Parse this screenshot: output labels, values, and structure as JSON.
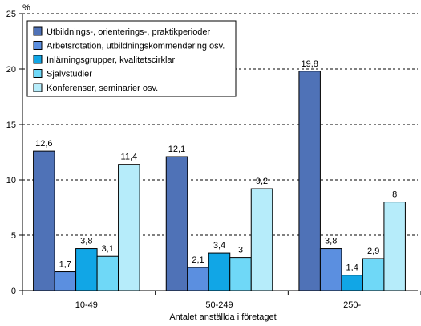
{
  "chart_data": {
    "type": "bar",
    "unit_label": "%",
    "xlabel": "Antalet anställda i företaget",
    "ylabel": "",
    "ylim": [
      0,
      25
    ],
    "yticks": [
      0,
      5,
      10,
      15,
      20,
      25
    ],
    "grid": "horizontal-dashed",
    "legend_position": "top-left",
    "categories": [
      "10-49",
      "50-249",
      "250-"
    ],
    "series": [
      {
        "name": "Utbildnings-, orienterings-, praktikperioder",
        "color": "#4f72b7",
        "values": [
          12.6,
          12.1,
          19.8
        ],
        "labels": [
          "12,6",
          "12,1",
          "19,8"
        ]
      },
      {
        "name": "Arbetsrotation, utbildningskommendering osv.",
        "color": "#5b8fe0",
        "values": [
          1.7,
          2.1,
          3.8
        ],
        "labels": [
          "1,7",
          "2,1",
          "3,8"
        ]
      },
      {
        "name": "Inlärningsgrupper, kvalitetscirklar",
        "color": "#11a6e6",
        "values": [
          3.8,
          3.4,
          1.4
        ],
        "labels": [
          "3,8",
          "3,4",
          "1,4"
        ]
      },
      {
        "name": "Självstudier",
        "color": "#6fd8f7",
        "values": [
          3.1,
          3.0,
          2.9
        ],
        "labels": [
          "3,1",
          "3",
          "2,9"
        ]
      },
      {
        "name": "Konferenser, seminarier osv.",
        "color": "#b6ecfa",
        "values": [
          11.4,
          9.2,
          8.0
        ],
        "labels": [
          "11,4",
          "9,2",
          "8"
        ]
      }
    ]
  }
}
